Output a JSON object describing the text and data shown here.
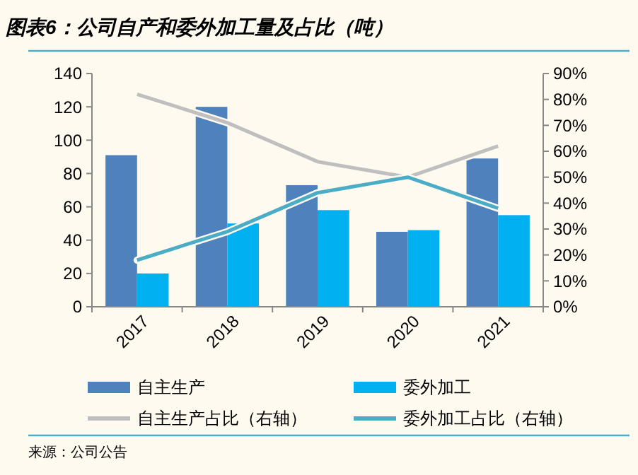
{
  "chart_data": {
    "type": "bar",
    "title": "图表6：公司自产和委外加工量及占比（吨）",
    "categories": [
      "2017",
      "2018",
      "2019",
      "2020",
      "2021"
    ],
    "series": [
      {
        "name": "自主生产",
        "color": "#4f81bd",
        "values": [
          91,
          120,
          73,
          45,
          89
        ]
      },
      {
        "name": "委外加工",
        "color": "#00b0f0",
        "values": [
          20,
          50,
          58,
          46,
          55
        ]
      },
      {
        "name": "自主生产占比（右轴）",
        "type": "line",
        "axis": "y2",
        "color": "#bfbfbf",
        "values": [
          82,
          71,
          56,
          50,
          62
        ]
      },
      {
        "name": "委外加工占比（右轴）",
        "type": "line",
        "axis": "y2",
        "color": "#4bacc6",
        "values": [
          18,
          29,
          44,
          50,
          38
        ]
      }
    ],
    "ylim": [
      0,
      140
    ],
    "yticks": [
      0,
      20,
      40,
      60,
      80,
      100,
      120,
      140
    ],
    "y2lim": [
      0,
      90
    ],
    "y2ticks": [
      {
        "value": 0,
        "label": "0%"
      },
      {
        "value": 10,
        "label": "10%"
      },
      {
        "value": 20,
        "label": "20%"
      },
      {
        "value": 30,
        "label": "30%"
      },
      {
        "value": 40,
        "label": "40%"
      },
      {
        "value": 50,
        "label": "50%"
      },
      {
        "value": 60,
        "label": "60%"
      },
      {
        "value": 70,
        "label": "70%"
      },
      {
        "value": 80,
        "label": "80%"
      },
      {
        "value": 90,
        "label": "90%"
      }
    ],
    "legend": "bottom",
    "grid": false,
    "marker": "none",
    "annotations": [
      "来源：公司公告"
    ]
  }
}
